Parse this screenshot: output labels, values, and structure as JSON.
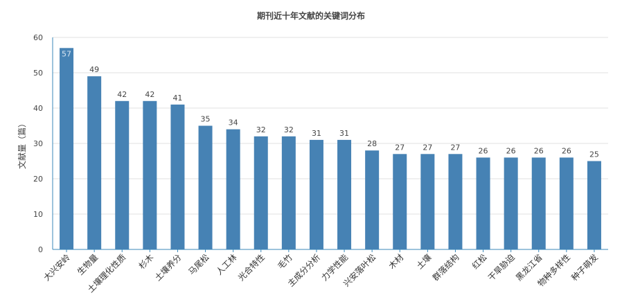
{
  "chart_data": {
    "type": "bar",
    "title": "期刊近十年文献的关键词分布",
    "ylabel": "文献量（篇）",
    "xlabel": "",
    "ylim": [
      0,
      60
    ],
    "yticks": [
      0,
      10,
      20,
      30,
      40,
      50,
      60
    ],
    "grid": true,
    "legend": "none",
    "bar_color": "#4682b4",
    "categories": [
      "大兴安岭",
      "生物量",
      "土壤理化性质",
      "杉木",
      "土壤养分",
      "马尾松",
      "人工林",
      "光合特性",
      "毛竹",
      "主成分分析",
      "力学性能",
      "兴安落叶松",
      "木材",
      "土壤",
      "群落结构",
      "红松",
      "干旱胁迫",
      "黑龙江省",
      "物种多样性",
      "种子萌发"
    ],
    "values": [
      57,
      49,
      42,
      42,
      41,
      35,
      34,
      32,
      32,
      31,
      31,
      28,
      27,
      27,
      27,
      26,
      26,
      26,
      26,
      25
    ]
  }
}
